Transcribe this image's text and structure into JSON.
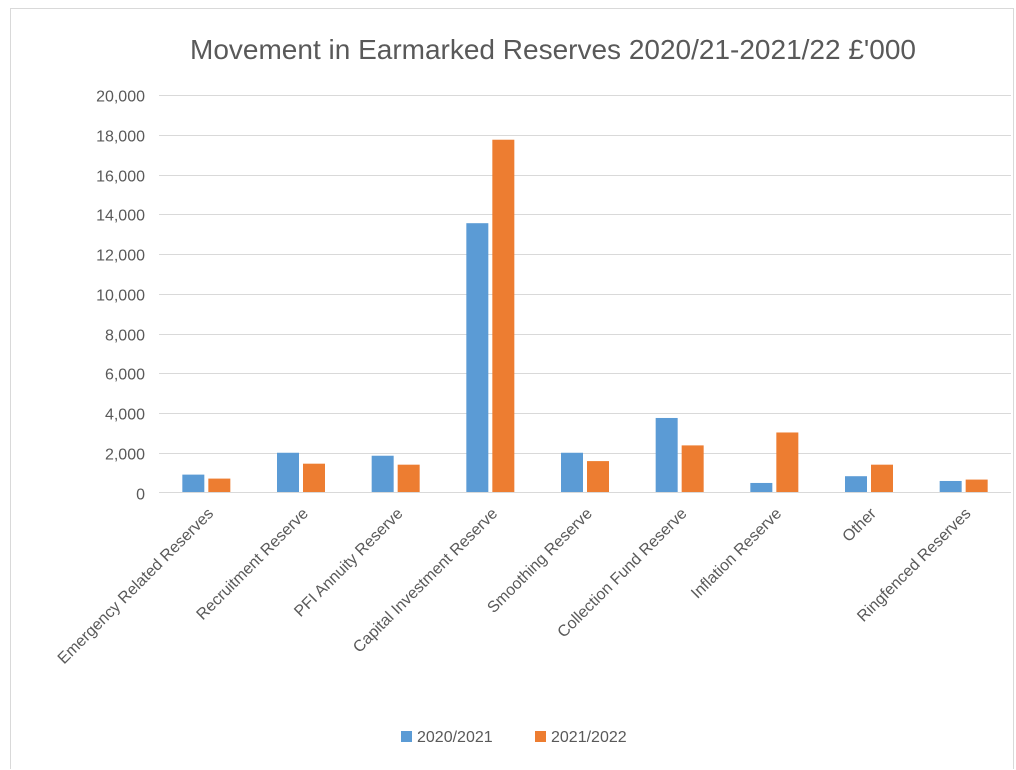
{
  "chart_data": {
    "type": "bar",
    "title": "Movement in Earmarked Reserves 2020/21-2021/22 £'000",
    "categories": [
      "Emergency Related Reserves",
      "Recruitment Reserve",
      "PFI Annuity Reserve",
      "Capital Investment Reserve",
      "Smoothing Reserve",
      "Collection Fund Reserve",
      "Inflation Reserve",
      "Other",
      "Ringfenced Reserves"
    ],
    "series": [
      {
        "name": "2020/2021",
        "color": "#5b9bd5",
        "values": [
          900,
          2000,
          1850,
          13550,
          2000,
          3750,
          480,
          820,
          580
        ]
      },
      {
        "name": "2021/2022",
        "color": "#ed7d31",
        "values": [
          700,
          1450,
          1400,
          17750,
          1580,
          2370,
          3020,
          1400,
          650
        ]
      }
    ],
    "ylim": [
      0,
      20000
    ],
    "yticks": [
      "0",
      "2,000",
      "4,000",
      "6,000",
      "8,000",
      "10,000",
      "12,000",
      "14,000",
      "16,000",
      "18,000",
      "20,000"
    ],
    "ytick_values": [
      0,
      2000,
      4000,
      6000,
      8000,
      10000,
      12000,
      14000,
      16000,
      18000,
      20000
    ],
    "grid": true,
    "legend_position": "bottom",
    "xlabel": "",
    "ylabel": ""
  }
}
